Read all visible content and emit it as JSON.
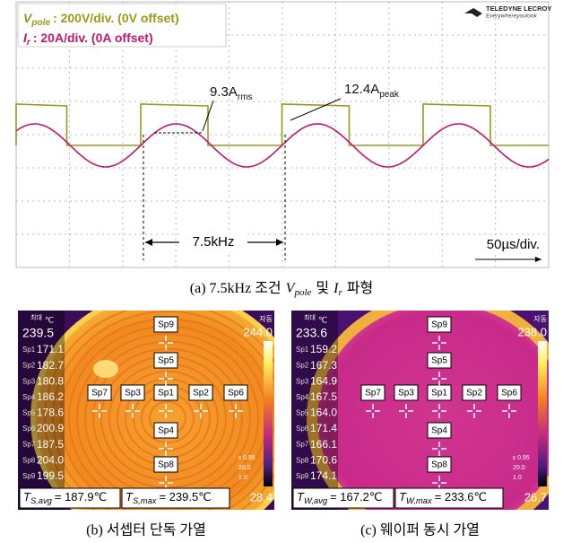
{
  "scope": {
    "brand": "TELEDYNE LECROY",
    "tagline": "Everywhereyoulook",
    "legend": [
      {
        "symbol": "V",
        "sub": "pole",
        "text": ": 200V/div. (0V offset)"
      },
      {
        "symbol": "I",
        "sub": "r",
        "text": ": 20A/div. (0A offset)"
      }
    ],
    "rms": {
      "value": "9.3A",
      "sub": "rms"
    },
    "peak": {
      "value": "12.4A",
      "sub": "peak"
    },
    "frequency": "7.5kHz",
    "timebase": "50µs/div."
  },
  "caption_a": [
    "(a) 7.5kHz 조건",
    "V",
    "pole",
    "및",
    "I",
    "r",
    "파형"
  ],
  "thermal": [
    {
      "max_label": "최대",
      "unit": "℃",
      "max": "239.5",
      "mode": "자동",
      "scale_top": "244.0",
      "scale_bottom": "28.4",
      "params": [
        "ε 0.95",
        "20.0",
        "1.0"
      ],
      "spots": [
        {
          "name": "Sp1",
          "value": "171.1"
        },
        {
          "name": "Sp2",
          "value": "182.7"
        },
        {
          "name": "Sp3",
          "value": "180.8"
        },
        {
          "name": "Sp4",
          "value": "186.2"
        },
        {
          "name": "Sp5",
          "value": "178.6"
        },
        {
          "name": "Sp6",
          "value": "200.9"
        },
        {
          "name": "Sp7",
          "value": "187.5"
        },
        {
          "name": "Sp8",
          "value": "204.0"
        },
        {
          "name": "Sp9",
          "value": "199.5"
        }
      ],
      "footer": [
        {
          "symbol": "T",
          "sub": "S,avg",
          "text": "= 187.9℃"
        },
        {
          "symbol": "T",
          "sub": "S,max",
          "text": "= 239.5℃"
        }
      ],
      "caption": "(b) 서셉터 단독 가열"
    },
    {
      "max_label": "최대",
      "unit": "℃",
      "max": "233.6",
      "mode": "자동",
      "scale_top": "238.0",
      "scale_bottom": "26.7",
      "params": [
        "ε 0.95",
        "20.0",
        "1.0"
      ],
      "spots": [
        {
          "name": "Sp1",
          "value": "159.2"
        },
        {
          "name": "Sp2",
          "value": "167.3"
        },
        {
          "name": "Sp3",
          "value": "164.9"
        },
        {
          "name": "Sp4",
          "value": "167.5"
        },
        {
          "name": "Sp5",
          "value": "164.0"
        },
        {
          "name": "Sp6",
          "value": "171.4"
        },
        {
          "name": "Sp7",
          "value": "166.1"
        },
        {
          "name": "Sp8",
          "value": "170.6"
        },
        {
          "name": "Sp9",
          "value": "174.1"
        }
      ],
      "footer": [
        {
          "symbol": "T",
          "sub": "W,avg",
          "text": "= 167.2℃"
        },
        {
          "symbol": "T",
          "sub": "W,max",
          "text": "= 233.6℃"
        }
      ],
      "caption": "(c) 웨이퍼 동시 가열"
    }
  ]
}
